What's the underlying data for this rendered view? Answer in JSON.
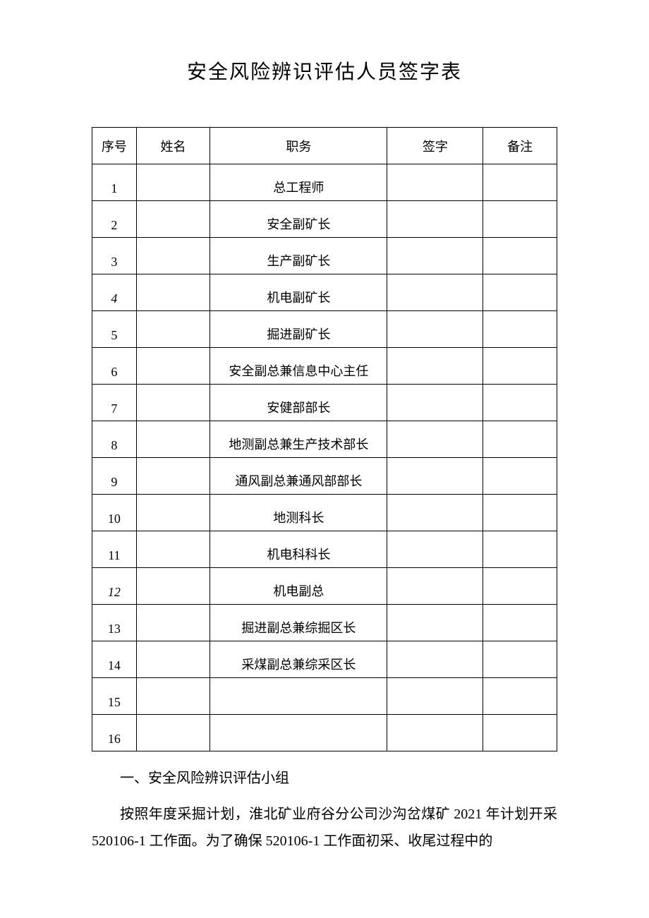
{
  "title": "安全风险辨识评估人员签字表",
  "table": {
    "columns": {
      "seq": "序号",
      "name": "姓名",
      "position": "职务",
      "sign": "签字",
      "remark": "备注"
    },
    "rows": [
      {
        "seq": "1",
        "name": "",
        "position": "总工程师",
        "sign": "",
        "remark": "",
        "italic": false
      },
      {
        "seq": "2",
        "name": "",
        "position": "安全副矿长",
        "sign": "",
        "remark": "",
        "italic": false
      },
      {
        "seq": "3",
        "name": "",
        "position": "生产副矿长",
        "sign": "",
        "remark": "",
        "italic": false
      },
      {
        "seq": "4",
        "name": "",
        "position": "机电副矿长",
        "sign": "",
        "remark": "",
        "italic": true
      },
      {
        "seq": "5",
        "name": "",
        "position": "掘进副矿长",
        "sign": "",
        "remark": "",
        "italic": false
      },
      {
        "seq": "6",
        "name": "",
        "position": "安全副总兼信息中心主任",
        "sign": "",
        "remark": "",
        "italic": false
      },
      {
        "seq": "7",
        "name": "",
        "position": "安健部部长",
        "sign": "",
        "remark": "",
        "italic": false
      },
      {
        "seq": "8",
        "name": "",
        "position": "地测副总兼生产技术部长",
        "sign": "",
        "remark": "",
        "italic": false
      },
      {
        "seq": "9",
        "name": "",
        "position": "通风副总兼通风部部长",
        "sign": "",
        "remark": "",
        "italic": false
      },
      {
        "seq": "10",
        "name": "",
        "position": "地测科长",
        "sign": "",
        "remark": "",
        "italic": false
      },
      {
        "seq": "11",
        "name": "",
        "position": "机电科科长",
        "sign": "",
        "remark": "",
        "italic": false
      },
      {
        "seq": "12",
        "name": "",
        "position": "机电副总",
        "sign": "",
        "remark": "",
        "italic": true
      },
      {
        "seq": "13",
        "name": "",
        "position": "掘进副总兼综掘区长",
        "sign": "",
        "remark": "",
        "italic": false
      },
      {
        "seq": "14",
        "name": "",
        "position": "采煤副总兼综采区长",
        "sign": "",
        "remark": "",
        "italic": false
      },
      {
        "seq": "15",
        "name": "",
        "position": "",
        "sign": "",
        "remark": "",
        "italic": false
      },
      {
        "seq": "16",
        "name": "",
        "position": "",
        "sign": "",
        "remark": "",
        "italic": false
      }
    ]
  },
  "section_heading": "一、安全风险辨识评估小组",
  "body_text": "按照年度采掘计划，淮北矿业府谷分公司沙沟岔煤矿 2021 年计划开采 520106-1 工作面。为了确保 520106-1 工作面初采、收尾过程中的"
}
